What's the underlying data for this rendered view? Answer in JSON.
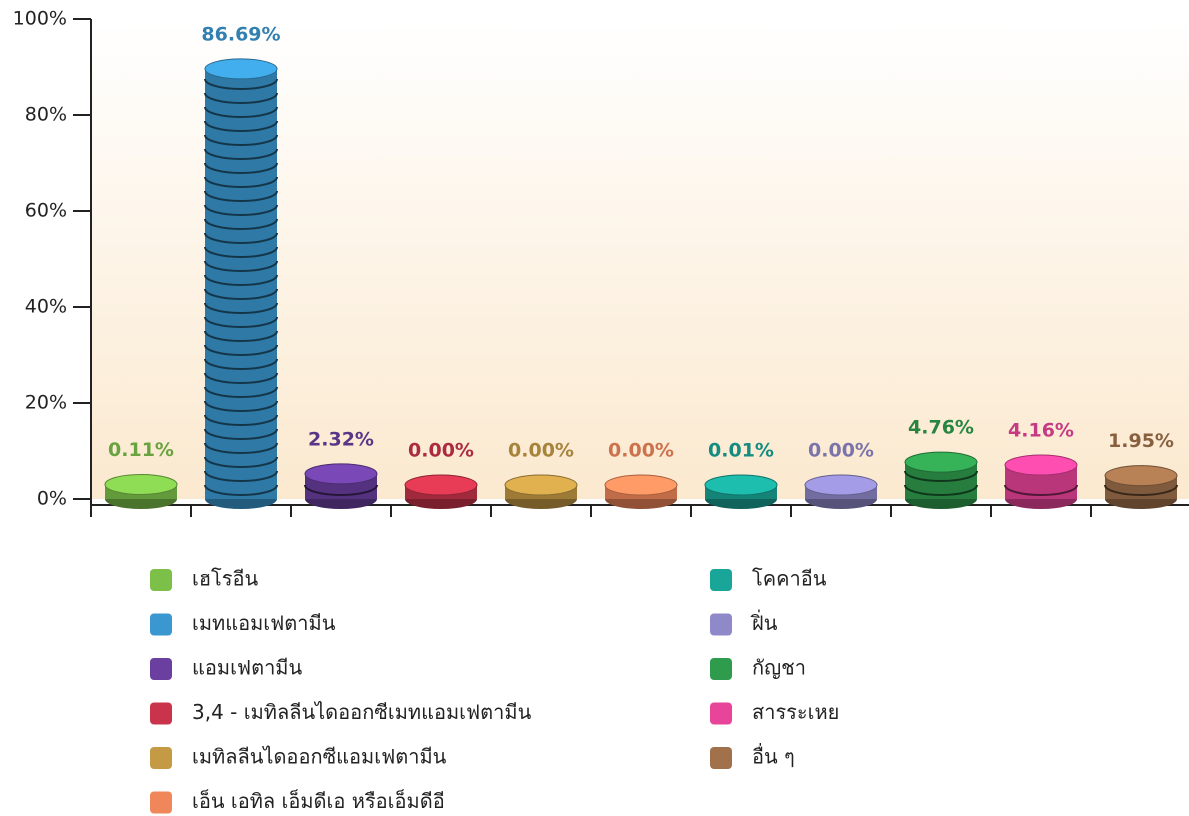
{
  "chart_data": {
    "type": "bar",
    "categories": [
      "เฮโรอีน",
      "เมทแอมเฟตามีน",
      "แอมเฟตามีน",
      "3,4 - เมทิลลีนไดออกซีเมทแอมเฟตามีน",
      "เมทิลลีนไดออกซีแอมเฟตามีน",
      "เอ็น เอทิล เอ็มดีเอ หรือเอ็มดีอี",
      "โคคาอีน",
      "ฝิ่น",
      "กัญชา",
      "สารระเหย",
      "อื่น ๆ"
    ],
    "values": [
      0.11,
      86.69,
      2.32,
      0.0,
      0.0,
      0.0,
      0.01,
      0.0,
      4.76,
      4.16,
      1.95
    ],
    "value_labels": [
      "0.11%",
      "86.69%",
      "2.32%",
      "0.00%",
      "0.00%",
      "0.00%",
      "0.01%",
      "0.00%",
      "4.76%",
      "4.16%",
      "1.95%"
    ],
    "colors": [
      "#7cc04a",
      "#3a97cf",
      "#6a3f9f",
      "#c9334b",
      "#c49a45",
      "#f0875a",
      "#19a597",
      "#8f88c9",
      "#2f9c4d",
      "#e8449a",
      "#a0714b"
    ],
    "ylim": [
      0,
      100
    ],
    "yticks": [
      {
        "value": 0,
        "label": "0%"
      },
      {
        "value": 20,
        "label": "20%"
      },
      {
        "value": 40,
        "label": "40%"
      },
      {
        "value": 60,
        "label": "60%"
      },
      {
        "value": 80,
        "label": "80%"
      },
      {
        "value": 100,
        "label": "100%"
      }
    ],
    "legend": "bottom"
  }
}
